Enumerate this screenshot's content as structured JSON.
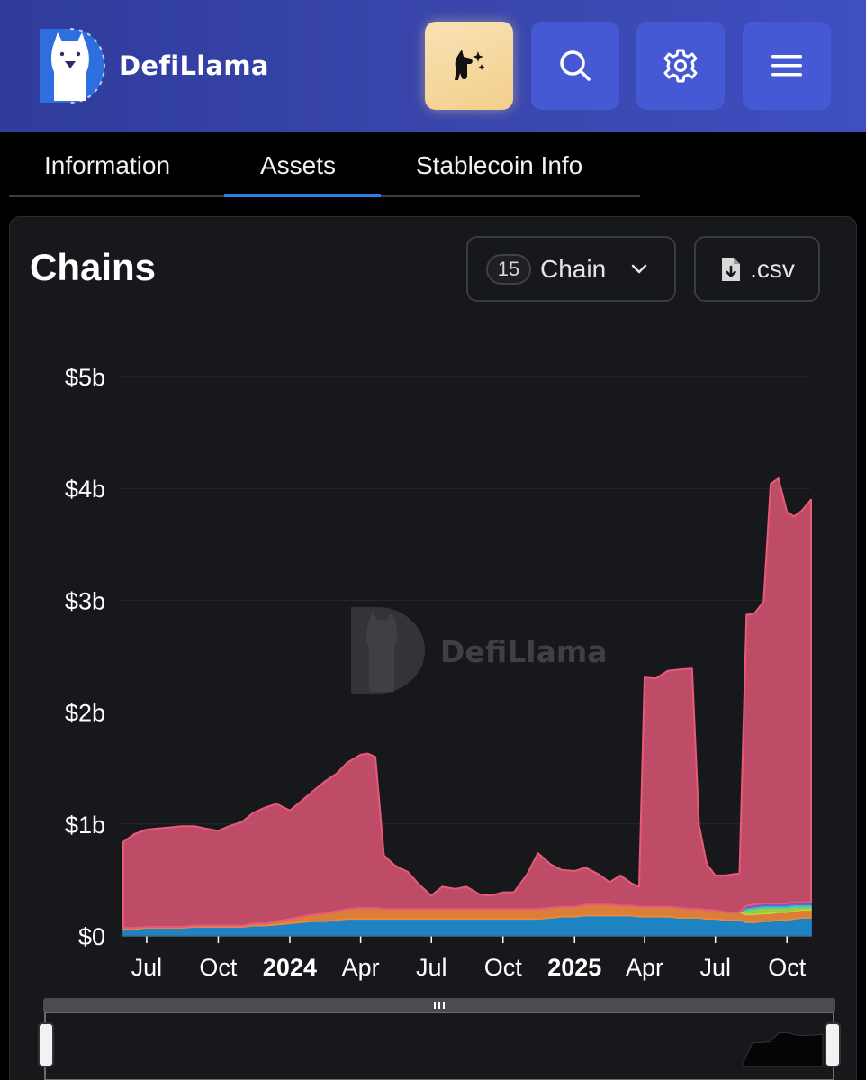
{
  "header": {
    "brand": "DefiLlama",
    "buttons": [
      {
        "icon": "llama-sparkle-icon"
      },
      {
        "icon": "search-icon"
      },
      {
        "icon": "gear-icon"
      },
      {
        "icon": "hamburger-menu-icon"
      }
    ],
    "accent": "#3946ad"
  },
  "tabs": [
    {
      "label": "Information",
      "active": false
    },
    {
      "label": "Assets",
      "active": true
    },
    {
      "label": "Stablecoin Info",
      "active": false
    }
  ],
  "card": {
    "title": "Chains",
    "chain_count": "15",
    "chain_selector_label": "Chain",
    "csv_label": ".csv"
  },
  "watermark": "DefiLlama",
  "chart_data": {
    "type": "area",
    "stacked": true,
    "title": "",
    "xlabel": "",
    "ylabel": "",
    "ylim": [
      0,
      5
    ],
    "y_unit": "b",
    "y_ticks": [
      "$0",
      "$1b",
      "$2b",
      "$3b",
      "$4b",
      "$5b"
    ],
    "y_tick_values": [
      0,
      1,
      2,
      3,
      4,
      5
    ],
    "x_range": [
      "2023-06-01",
      "2025-11-01"
    ],
    "x_ticks": [
      {
        "label": "Jul",
        "date": "2023-07-01",
        "bold": false
      },
      {
        "label": "Oct",
        "date": "2023-10-01",
        "bold": false
      },
      {
        "label": "2024",
        "date": "2024-01-01",
        "bold": true
      },
      {
        "label": "Apr",
        "date": "2024-04-01",
        "bold": false
      },
      {
        "label": "Jul",
        "date": "2024-07-01",
        "bold": false
      },
      {
        "label": "Oct",
        "date": "2024-10-01",
        "bold": false
      },
      {
        "label": "2025",
        "date": "2025-01-01",
        "bold": true
      },
      {
        "label": "Apr",
        "date": "2025-04-01",
        "bold": false
      },
      {
        "label": "Jul",
        "date": "2025-07-01",
        "bold": false
      },
      {
        "label": "Oct",
        "date": "2025-10-01",
        "bold": false
      }
    ],
    "grid": true,
    "legend": "none",
    "x": [
      "2023-06-01",
      "2023-06-15",
      "2023-07-01",
      "2023-07-15",
      "2023-08-01",
      "2023-08-15",
      "2023-09-01",
      "2023-09-15",
      "2023-10-01",
      "2023-10-15",
      "2023-11-01",
      "2023-11-15",
      "2023-12-01",
      "2023-12-15",
      "2024-01-01",
      "2024-01-15",
      "2024-02-01",
      "2024-02-15",
      "2024-03-01",
      "2024-03-15",
      "2024-04-01",
      "2024-04-10",
      "2024-04-20",
      "2024-05-01",
      "2024-05-15",
      "2024-06-01",
      "2024-06-15",
      "2024-07-01",
      "2024-07-15",
      "2024-08-01",
      "2024-08-15",
      "2024-09-01",
      "2024-09-15",
      "2024-10-01",
      "2024-10-15",
      "2024-11-01",
      "2024-11-15",
      "2024-12-01",
      "2024-12-15",
      "2025-01-01",
      "2025-01-15",
      "2025-02-01",
      "2025-02-15",
      "2025-03-01",
      "2025-03-15",
      "2025-03-25",
      "2025-04-01",
      "2025-04-15",
      "2025-05-01",
      "2025-05-15",
      "2025-06-01",
      "2025-06-10",
      "2025-06-20",
      "2025-07-01",
      "2025-07-15",
      "2025-08-01",
      "2025-08-10",
      "2025-08-20",
      "2025-09-01",
      "2025-09-10",
      "2025-09-20",
      "2025-10-01",
      "2025-10-10",
      "2025-10-20",
      "2025-11-01"
    ],
    "series": [
      {
        "color": "#1e8fd6",
        "values": [
          0.06,
          0.06,
          0.07,
          0.07,
          0.07,
          0.07,
          0.08,
          0.08,
          0.08,
          0.08,
          0.08,
          0.09,
          0.09,
          0.1,
          0.11,
          0.12,
          0.13,
          0.13,
          0.14,
          0.15,
          0.15,
          0.15,
          0.15,
          0.15,
          0.15,
          0.15,
          0.15,
          0.15,
          0.15,
          0.15,
          0.15,
          0.15,
          0.15,
          0.15,
          0.15,
          0.15,
          0.15,
          0.16,
          0.17,
          0.17,
          0.18,
          0.18,
          0.18,
          0.18,
          0.18,
          0.17,
          0.17,
          0.17,
          0.17,
          0.16,
          0.16,
          0.16,
          0.15,
          0.15,
          0.14,
          0.14,
          0.12,
          0.12,
          0.13,
          0.13,
          0.14,
          0.14,
          0.15,
          0.16,
          0.16
        ]
      },
      {
        "color": "#ef8a3c",
        "values": [
          0.01,
          0.01,
          0.01,
          0.01,
          0.01,
          0.01,
          0.01,
          0.01,
          0.01,
          0.01,
          0.01,
          0.02,
          0.02,
          0.03,
          0.04,
          0.05,
          0.06,
          0.07,
          0.08,
          0.09,
          0.1,
          0.1,
          0.1,
          0.09,
          0.09,
          0.09,
          0.09,
          0.09,
          0.09,
          0.09,
          0.09,
          0.09,
          0.09,
          0.09,
          0.09,
          0.09,
          0.09,
          0.09,
          0.09,
          0.09,
          0.1,
          0.1,
          0.1,
          0.09,
          0.09,
          0.09,
          0.09,
          0.09,
          0.09,
          0.09,
          0.08,
          0.08,
          0.08,
          0.08,
          0.07,
          0.07,
          0.07,
          0.07,
          0.07,
          0.07,
          0.07,
          0.07,
          0.07,
          0.07,
          0.07
        ]
      },
      {
        "color": "#b3d944",
        "values": [
          0,
          0,
          0,
          0,
          0,
          0,
          0,
          0,
          0,
          0,
          0,
          0,
          0,
          0,
          0,
          0,
          0,
          0,
          0,
          0,
          0,
          0,
          0,
          0,
          0,
          0,
          0,
          0,
          0,
          0,
          0,
          0,
          0,
          0,
          0,
          0,
          0,
          0,
          0,
          0,
          0,
          0,
          0,
          0,
          0,
          0,
          0,
          0,
          0,
          0,
          0,
          0,
          0,
          0,
          0,
          0,
          0.04,
          0.05,
          0.05,
          0.05,
          0.04,
          0.04,
          0.04,
          0.03,
          0.03
        ]
      },
      {
        "color": "#2dd4bf",
        "values": [
          0,
          0,
          0,
          0,
          0,
          0,
          0,
          0,
          0,
          0,
          0,
          0,
          0,
          0,
          0,
          0,
          0,
          0,
          0,
          0,
          0,
          0,
          0,
          0,
          0,
          0,
          0,
          0,
          0,
          0,
          0,
          0,
          0,
          0,
          0,
          0,
          0,
          0,
          0,
          0,
          0,
          0,
          0,
          0,
          0,
          0,
          0,
          0,
          0,
          0,
          0,
          0,
          0,
          0,
          0,
          0,
          0.02,
          0.02,
          0.02,
          0.02,
          0.02,
          0.02,
          0.02,
          0.02,
          0.02
        ]
      },
      {
        "color": "#7c5cd6",
        "values": [
          0,
          0,
          0,
          0,
          0,
          0,
          0,
          0,
          0,
          0,
          0,
          0,
          0,
          0,
          0,
          0,
          0,
          0,
          0,
          0,
          0,
          0,
          0,
          0,
          0,
          0,
          0,
          0,
          0,
          0,
          0,
          0,
          0,
          0,
          0,
          0,
          0,
          0,
          0,
          0,
          0,
          0,
          0,
          0,
          0,
          0,
          0,
          0,
          0,
          0,
          0,
          0,
          0,
          0,
          0,
          0,
          0.02,
          0.02,
          0.02,
          0.02,
          0.02,
          0.02,
          0.02,
          0.02,
          0.02
        ]
      },
      {
        "color": "#e85a7a",
        "values": [
          0.77,
          0.84,
          0.87,
          0.88,
          0.89,
          0.9,
          0.89,
          0.87,
          0.85,
          0.89,
          0.93,
          0.99,
          1.04,
          1.05,
          0.97,
          1.03,
          1.11,
          1.18,
          1.23,
          1.31,
          1.37,
          1.38,
          1.35,
          0.48,
          0.39,
          0.33,
          0.22,
          0.12,
          0.2,
          0.18,
          0.2,
          0.13,
          0.12,
          0.15,
          0.15,
          0.31,
          0.5,
          0.39,
          0.33,
          0.32,
          0.33,
          0.27,
          0.2,
          0.27,
          0.2,
          0.18,
          2.05,
          2.04,
          2.11,
          2.13,
          2.15,
          0.75,
          0.41,
          0.31,
          0.33,
          0.35,
          2.6,
          2.6,
          2.7,
          3.75,
          3.8,
          3.5,
          3.45,
          3.5,
          3.6
        ]
      }
    ]
  }
}
